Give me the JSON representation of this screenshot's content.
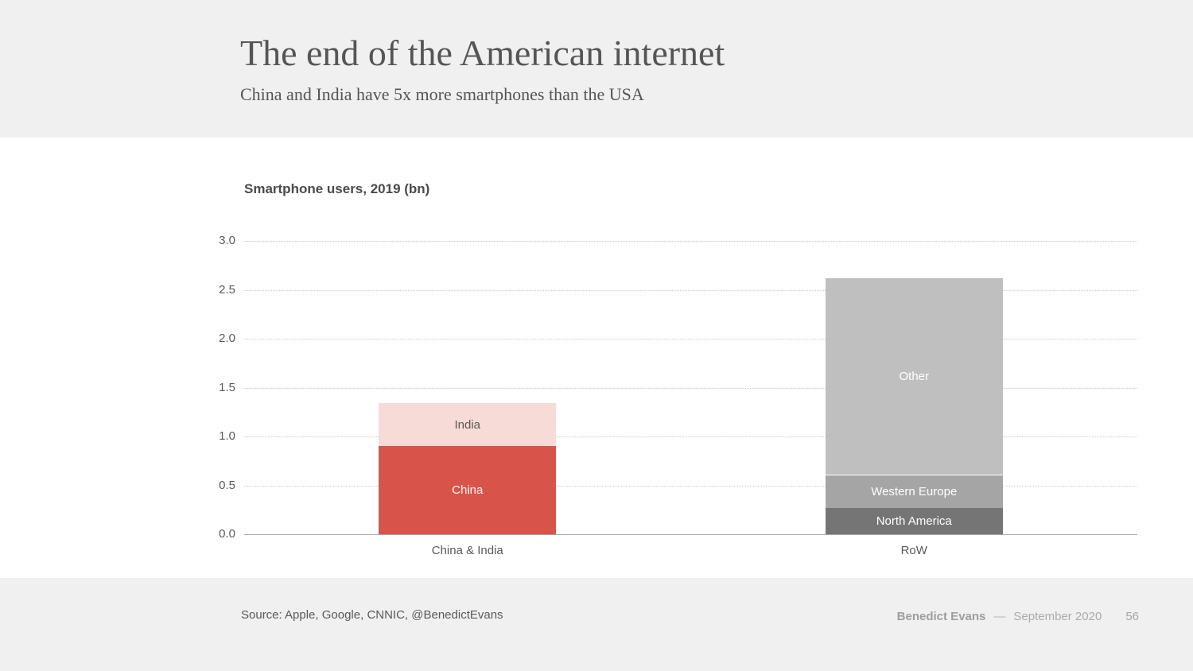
{
  "header": {
    "title": "The end of the American internet",
    "subtitle": "China and India have 5x more smartphones than the USA"
  },
  "chart_data": {
    "type": "bar",
    "stacked": true,
    "title": "Smartphone users, 2019 (bn)",
    "categories": [
      "China & India",
      "RoW"
    ],
    "series": [
      {
        "name": "China",
        "values": [
          0.9,
          0
        ],
        "color": "#d8544b",
        "text_color": "#ffffff",
        "textured": false
      },
      {
        "name": "India",
        "values": [
          0.45,
          0
        ],
        "color": "#f6dbd6",
        "text_color": "#5a5a5a",
        "textured": false
      },
      {
        "name": "North America",
        "values": [
          0,
          0.27
        ],
        "color": "#757575",
        "text_color": "#ffffff",
        "textured": true
      },
      {
        "name": "Western Europe",
        "values": [
          0,
          0.34
        ],
        "color": "#a5a5a5",
        "text_color": "#ffffff",
        "textured": false
      },
      {
        "name": "Other",
        "values": [
          0,
          2.02
        ],
        "color": "#bfbfbf",
        "text_color": "#ffffff",
        "textured": false
      }
    ],
    "xlabel": "",
    "ylabel": "",
    "ylim": [
      0,
      3
    ],
    "yticks": [
      0.0,
      0.5,
      1.0,
      1.5,
      2.0,
      2.5,
      3.0
    ],
    "ytick_format": "one-decimal",
    "grid": "horizontal-dotted",
    "legend": "none-labels-inside-segments"
  },
  "footer": {
    "source": "Source: Apple, Google, CNNIC, @BenedictEvans",
    "author": "Benedict Evans",
    "separator": "—",
    "date": "September 2020",
    "page": "56"
  }
}
